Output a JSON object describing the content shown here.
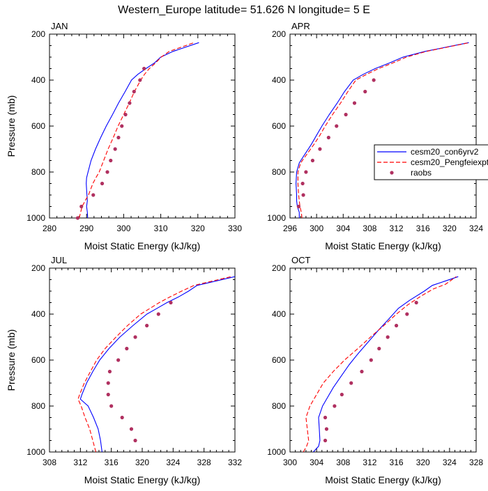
{
  "title": "Western_Europe  latitude= 51.626 N longitude= 5 E",
  "colors": {
    "con6yrv2": "#0000ff",
    "pengfeiexpt": "#ff0000",
    "raobs": "#b03060"
  },
  "legend": {
    "placement": "right-of-APR-panel",
    "entries": [
      "cesm20_con6yrv2",
      "cesm20_Pengfeiexpt",
      "raobs"
    ]
  },
  "chart_data": [
    {
      "type": "line",
      "panel": "JAN",
      "xlabel": "Moist Static Energy (kJ/kg)",
      "ylabel": "Pressure (mb)",
      "xlim": [
        280,
        330
      ],
      "ylim": [
        1000,
        200
      ],
      "xticks": [
        "280",
        "290",
        "300",
        "310",
        "320",
        "330"
      ],
      "yticks": [
        "200",
        "400",
        "600",
        "800",
        "1000"
      ],
      "series": [
        {
          "name": "cesm20_con6yrv2",
          "style": "solid",
          "points": [
            [
              290.3,
              1000
            ],
            [
              290.2,
              975
            ],
            [
              290.0,
              950
            ],
            [
              290.2,
              925
            ],
            [
              290.1,
              900
            ],
            [
              289.9,
              850
            ],
            [
              290.0,
              825
            ],
            [
              290.4,
              800
            ],
            [
              291.2,
              750
            ],
            [
              292.4,
              700
            ],
            [
              293.8,
              650
            ],
            [
              295.3,
              600
            ],
            [
              297.0,
              550
            ],
            [
              298.6,
              500
            ],
            [
              300.4,
              450
            ],
            [
              302.1,
              400
            ],
            [
              303.8,
              375
            ],
            [
              306.0,
              350
            ],
            [
              308.3,
              325
            ],
            [
              310.0,
              300
            ],
            [
              313.3,
              275
            ],
            [
              320.3,
              237
            ]
          ]
        },
        {
          "name": "cesm20_Pengfeiexpt",
          "style": "dashed",
          "points": [
            [
              288.0,
              1000
            ],
            [
              288.4,
              975
            ],
            [
              288.8,
              950
            ],
            [
              289.6,
              925
            ],
            [
              290.5,
              900
            ],
            [
              291.7,
              850
            ],
            [
              292.5,
              825
            ],
            [
              293.4,
              800
            ],
            [
              294.6,
              750
            ],
            [
              295.8,
              700
            ],
            [
              297.2,
              650
            ],
            [
              298.5,
              600
            ],
            [
              300.0,
              550
            ],
            [
              301.5,
              500
            ],
            [
              302.9,
              450
            ],
            [
              304.6,
              400
            ],
            [
              305.6,
              375
            ],
            [
              306.9,
              350
            ],
            [
              308.6,
              325
            ],
            [
              310.1,
              300
            ],
            [
              312.3,
              275
            ],
            [
              319.0,
              237
            ]
          ]
        },
        {
          "name": "raobs",
          "style": "markers",
          "points": [
            [
              287.6,
              1000
            ],
            [
              288.6,
              950
            ],
            [
              291.8,
              900
            ],
            [
              294.2,
              850
            ],
            [
              295.6,
              800
            ],
            [
              296.5,
              750
            ],
            [
              297.7,
              700
            ],
            [
              298.6,
              650
            ],
            [
              299.5,
              600
            ],
            [
              300.5,
              550
            ],
            [
              301.6,
              500
            ],
            [
              302.8,
              450
            ],
            [
              304.4,
              400
            ],
            [
              305.5,
              350
            ]
          ]
        }
      ]
    },
    {
      "type": "line",
      "panel": "APR",
      "xlabel": "Moist Static Energy (kJ/kg)",
      "ylabel": "",
      "xlim": [
        296,
        324
      ],
      "ylim": [
        1000,
        200
      ],
      "xticks": [
        "296",
        "300",
        "304",
        "308",
        "312",
        "316",
        "320",
        "324"
      ],
      "yticks": [
        "200",
        "400",
        "600",
        "800",
        "1000"
      ],
      "series": [
        {
          "name": "cesm20_con6yrv2",
          "style": "solid",
          "points": [
            [
              297.4,
              1000
            ],
            [
              297.4,
              975
            ],
            [
              297.1,
              950
            ],
            [
              297.0,
              925
            ],
            [
              297.0,
              900
            ],
            [
              296.9,
              850
            ],
            [
              297.0,
              800
            ],
            [
              297.4,
              760
            ],
            [
              298.3,
              720
            ],
            [
              299.2,
              680
            ],
            [
              300.0,
              640
            ],
            [
              300.8,
              600
            ],
            [
              301.9,
              550
            ],
            [
              303.1,
              500
            ],
            [
              304.2,
              450
            ],
            [
              305.5,
              400
            ],
            [
              307.0,
              375
            ],
            [
              308.8,
              350
            ],
            [
              311.0,
              325
            ],
            [
              313.0,
              300
            ],
            [
              316.3,
              275
            ],
            [
              322.9,
              237
            ]
          ]
        },
        {
          "name": "cesm20_Pengfeiexpt",
          "style": "dashed",
          "points": [
            [
              297.8,
              1000
            ],
            [
              297.7,
              975
            ],
            [
              297.5,
              950
            ],
            [
              297.4,
              925
            ],
            [
              297.3,
              900
            ],
            [
              297.2,
              850
            ],
            [
              297.2,
              800
            ],
            [
              297.6,
              760
            ],
            [
              298.6,
              720
            ],
            [
              299.6,
              680
            ],
            [
              300.5,
              640
            ],
            [
              301.3,
              600
            ],
            [
              302.4,
              550
            ],
            [
              303.6,
              500
            ],
            [
              304.7,
              450
            ],
            [
              305.9,
              400
            ],
            [
              307.5,
              375
            ],
            [
              309.3,
              350
            ],
            [
              311.5,
              325
            ],
            [
              313.5,
              300
            ],
            [
              316.5,
              275
            ],
            [
              323.0,
              237
            ]
          ]
        },
        {
          "name": "raobs",
          "style": "markers",
          "points": [
            [
              297.3,
              950
            ],
            [
              298.0,
              900
            ],
            [
              297.9,
              850
            ],
            [
              298.4,
              800
            ],
            [
              299.4,
              750
            ],
            [
              300.5,
              700
            ],
            [
              301.8,
              650
            ],
            [
              303.0,
              600
            ],
            [
              304.4,
              550
            ],
            [
              305.7,
              500
            ],
            [
              307.3,
              450
            ],
            [
              308.6,
              400
            ]
          ]
        }
      ]
    },
    {
      "type": "line",
      "panel": "JUL",
      "xlabel": "Moist Static Energy (kJ/kg)",
      "ylabel": "Pressure (mb)",
      "xlim": [
        308,
        332
      ],
      "ylim": [
        1000,
        200
      ],
      "xticks": [
        "308",
        "312",
        "316",
        "320",
        "324",
        "328",
        "332"
      ],
      "yticks": [
        "200",
        "400",
        "600",
        "800",
        "1000"
      ],
      "series": [
        {
          "name": "cesm20_con6yrv2",
          "style": "solid",
          "points": [
            [
              314.8,
              1000
            ],
            [
              314.7,
              975
            ],
            [
              314.6,
              950
            ],
            [
              314.3,
              900
            ],
            [
              313.7,
              850
            ],
            [
              313.0,
              800
            ],
            [
              312.0,
              770
            ],
            [
              312.2,
              750
            ],
            [
              312.8,
              700
            ],
            [
              313.6,
              650
            ],
            [
              314.5,
              600
            ],
            [
              315.7,
              550
            ],
            [
              317.1,
              500
            ],
            [
              318.8,
              450
            ],
            [
              320.6,
              400
            ],
            [
              321.9,
              375
            ],
            [
              323.2,
              350
            ],
            [
              324.7,
              325
            ],
            [
              326.0,
              300
            ],
            [
              327.1,
              275
            ],
            [
              332.0,
              237
            ]
          ]
        },
        {
          "name": "cesm20_Pengfeiexpt",
          "style": "dashed",
          "points": [
            [
              314.0,
              1000
            ],
            [
              313.8,
              975
            ],
            [
              313.6,
              950
            ],
            [
              313.2,
              900
            ],
            [
              312.6,
              850
            ],
            [
              312.1,
              800
            ],
            [
              311.7,
              770
            ],
            [
              311.9,
              750
            ],
            [
              312.5,
              700
            ],
            [
              313.3,
              650
            ],
            [
              314.1,
              600
            ],
            [
              315.2,
              550
            ],
            [
              316.6,
              500
            ],
            [
              318.1,
              450
            ],
            [
              319.8,
              400
            ],
            [
              321.0,
              375
            ],
            [
              322.2,
              350
            ],
            [
              323.6,
              325
            ],
            [
              325.1,
              300
            ],
            [
              326.7,
              275
            ],
            [
              331.5,
              237
            ]
          ]
        },
        {
          "name": "raobs",
          "style": "markers",
          "points": [
            [
              319.1,
              950
            ],
            [
              318.6,
              900
            ],
            [
              317.4,
              850
            ],
            [
              316.0,
              800
            ],
            [
              315.6,
              750
            ],
            [
              315.6,
              700
            ],
            [
              315.8,
              650
            ],
            [
              316.9,
              600
            ],
            [
              318.0,
              550
            ],
            [
              319.1,
              500
            ],
            [
              320.6,
              450
            ],
            [
              322.1,
              400
            ],
            [
              323.7,
              350
            ]
          ]
        }
      ]
    },
    {
      "type": "line",
      "panel": "OCT",
      "xlabel": "Moist Static Energy (kJ/kg)",
      "ylabel": "",
      "xlim": [
        300,
        328
      ],
      "ylim": [
        1000,
        200
      ],
      "xticks": [
        "300",
        "304",
        "308",
        "312",
        "316",
        "320",
        "324",
        "328"
      ],
      "yticks": [
        "200",
        "400",
        "600",
        "800",
        "1000"
      ],
      "series": [
        {
          "name": "cesm20_con6yrv2",
          "style": "solid",
          "points": [
            [
              303.5,
              1000
            ],
            [
              304.3,
              975
            ],
            [
              304.5,
              950
            ],
            [
              304.4,
              900
            ],
            [
              304.3,
              850
            ],
            [
              304.9,
              800
            ],
            [
              305.5,
              770
            ],
            [
              306.5,
              720
            ],
            [
              307.7,
              670
            ],
            [
              308.9,
              620
            ],
            [
              310.3,
              570
            ],
            [
              311.8,
              520
            ],
            [
              313.3,
              470
            ],
            [
              314.9,
              420
            ],
            [
              316.3,
              375
            ],
            [
              318.0,
              340
            ],
            [
              320.2,
              300
            ],
            [
              321.4,
              275
            ],
            [
              325.3,
              237
            ]
          ]
        },
        {
          "name": "cesm20_Pengfeiexpt",
          "style": "dashed",
          "points": [
            [
              302.0,
              1000
            ],
            [
              302.5,
              975
            ],
            [
              302.8,
              950
            ],
            [
              302.6,
              900
            ],
            [
              302.4,
              850
            ],
            [
              303.0,
              800
            ],
            [
              303.8,
              760
            ],
            [
              305.0,
              700
            ],
            [
              306.5,
              650
            ],
            [
              308.2,
              600
            ],
            [
              310.2,
              550
            ],
            [
              312.1,
              500
            ],
            [
              314.1,
              450
            ],
            [
              316.0,
              400
            ],
            [
              317.7,
              360
            ],
            [
              319.8,
              320
            ],
            [
              321.6,
              290
            ],
            [
              323.4,
              270
            ],
            [
              325.0,
              237
            ]
          ]
        },
        {
          "name": "raobs",
          "style": "markers",
          "points": [
            [
              305.3,
              950
            ],
            [
              305.5,
              900
            ],
            [
              305.3,
              850
            ],
            [
              306.7,
              800
            ],
            [
              307.8,
              750
            ],
            [
              309.2,
              700
            ],
            [
              310.8,
              650
            ],
            [
              312.2,
              600
            ],
            [
              313.4,
              550
            ],
            [
              314.7,
              500
            ],
            [
              316.0,
              450
            ],
            [
              317.6,
              400
            ],
            [
              319.0,
              350
            ]
          ]
        }
      ]
    }
  ]
}
